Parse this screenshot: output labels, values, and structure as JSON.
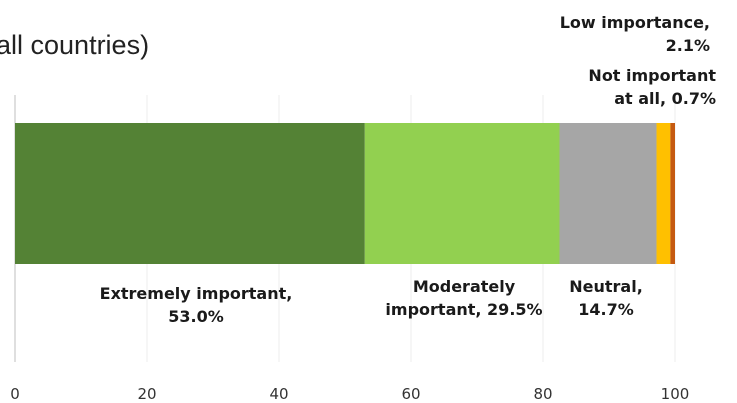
{
  "chart_data": {
    "type": "bar",
    "orientation": "horizontal-stacked",
    "title": "all countries)",
    "xlim": [
      0,
      100
    ],
    "x_ticks": [
      "0",
      "20",
      "40",
      "60",
      "80",
      "100"
    ],
    "grid": true,
    "series": [
      {
        "name": "Extremely important",
        "value": 53.0,
        "color": "#548235",
        "label_lines": [
          "Extremely important,",
          "53.0%"
        ]
      },
      {
        "name": "Moderately important",
        "value": 29.5,
        "color": "#92D050",
        "label_lines": [
          "Moderately",
          "important, 29.5%"
        ]
      },
      {
        "name": "Neutral",
        "value": 14.7,
        "color": "#A6A6A6",
        "label_lines": [
          "Neutral,",
          "14.7%"
        ]
      },
      {
        "name": "Low importance",
        "value": 2.1,
        "color": "#FFC000",
        "label_lines": [
          "Low importance,",
          "2.1%"
        ]
      },
      {
        "name": "Not important at all",
        "value": 0.7,
        "color": "#C55A11",
        "label_lines": [
          "Not important",
          "at all, 0.7%"
        ]
      }
    ]
  }
}
